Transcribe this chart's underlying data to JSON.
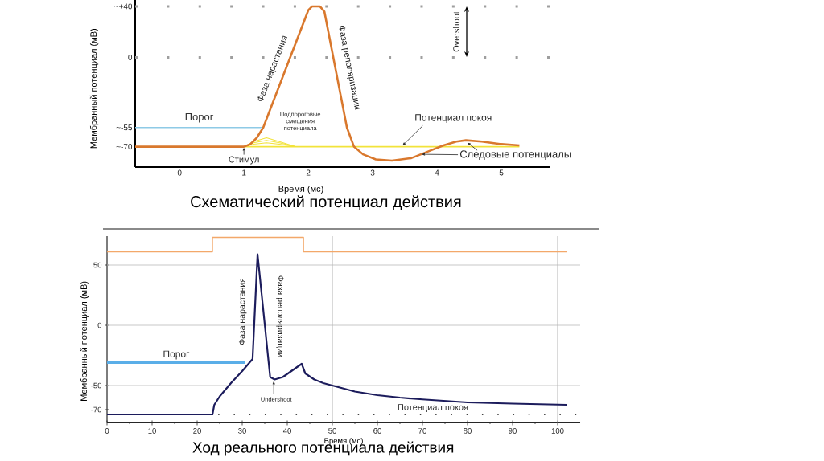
{
  "chart_data": [
    {
      "type": "line",
      "title": "Схематический потенциал действия",
      "xlabel": "Время (мс)",
      "ylabel": "Мембранный потенциал (мВ)",
      "xlim": [
        -0.69,
        5.75
      ],
      "xticks": [
        0,
        1,
        2,
        3,
        4,
        5
      ],
      "ylim": [
        -86,
        45
      ],
      "yticks": [
        {
          "value": -70,
          "label": "~-70"
        },
        {
          "value": -55,
          "label": "~-55"
        },
        0,
        {
          "value": 40,
          "label": "~+40"
        }
      ],
      "series": [
        {
          "name": "Порог",
          "color": "#8ecae6",
          "x": [
            -0.69,
            1.3
          ],
          "values": [
            -55,
            -55
          ]
        },
        {
          "color": "#f2e33a",
          "x": [
            1.0,
            5.28
          ],
          "values": [
            -70,
            -70
          ]
        },
        {
          "color": "#f2e33a",
          "x": [
            1.0,
            1.15,
            1.35,
            1.55,
            1.8
          ],
          "values": [
            -70,
            -66,
            -63,
            -66,
            -70
          ]
        },
        {
          "color": "#f2e33a",
          "x": [
            1.0,
            1.15,
            1.35,
            1.55,
            1.8
          ],
          "values": [
            -70,
            -67,
            -65,
            -67,
            -70
          ]
        },
        {
          "color": "#f2e33a",
          "x": [
            1.0,
            1.15,
            1.35,
            1.55,
            1.8
          ],
          "values": [
            -70,
            -68,
            -67,
            -68,
            -70
          ]
        },
        {
          "color": "#d9782d",
          "x": [
            -0.69,
            1.0,
            1.1,
            1.2,
            1.3,
            2.0,
            2.06,
            2.18,
            2.25,
            2.6,
            2.71,
            2.85,
            3.05,
            3.3,
            3.6,
            3.9,
            4.1,
            4.3,
            4.45,
            4.7,
            5.0,
            5.28
          ],
          "values": [
            -70,
            -70,
            -68,
            -63,
            -55,
            37,
            40,
            40,
            36,
            -55,
            -70,
            -76,
            -80,
            -81,
            -79,
            -73,
            -69,
            -66,
            -65,
            -66,
            -68,
            -69
          ]
        }
      ],
      "ref_lines": [
        {
          "axis": "y",
          "value": 40,
          "color": "#9e9e9e",
          "line_style": "dotted"
        },
        {
          "axis": "y",
          "value": 0,
          "color": "#9e9e9e",
          "line_style": "dotted"
        }
      ],
      "annotations": [
        {
          "text": "Фаза нарастания",
          "x": 1.65,
          "y": -9
        },
        {
          "text": "Фаза реполяризации",
          "x": 2.42,
          "y": -8
        },
        {
          "text": "Подпороговые смещения потенциала",
          "x": 1.35,
          "y": -63
        },
        {
          "text": "Стимул",
          "x": 1.0,
          "y": -70
        },
        {
          "text": "Потенциал покоя",
          "x": 3.44,
          "y": -70
        },
        {
          "text": "Следовые потенциалы",
          "x": 3.75,
          "y": -76
        },
        "Overshoot"
      ]
    },
    {
      "type": "line",
      "title": "Ход реального потенциала действия",
      "xlabel": "Время (мс)",
      "ylabel": "Мембранный потенциал (мВ)",
      "xlim": [
        0,
        105
      ],
      "xticks": [
        0,
        10,
        20,
        30,
        40,
        50,
        60,
        70,
        80,
        90,
        100
      ],
      "ylim": [
        -81,
        74
      ],
      "yticks": [
        -70,
        -50,
        0,
        50
      ],
      "series": [
        {
          "color": "#f3a86a",
          "x": [
            0,
            23.4,
            23.4,
            43.6,
            43.6,
            102
          ],
          "values": [
            61,
            61,
            73,
            73,
            61,
            61
          ]
        },
        {
          "name": "Порог",
          "color": "#5aaee8",
          "x": [
            0,
            30.7
          ],
          "values": [
            -31,
            -31
          ]
        },
        {
          "name": "Потенциал покоя",
          "color": "#333333",
          "line_style": "dotted",
          "x": [
            24.8,
            104
          ],
          "values": [
            -74,
            -74
          ]
        },
        {
          "color": "#1c1c5c",
          "x": [
            0,
            23.4,
            23.8,
            25,
            27.5,
            30,
            32.3,
            33.4,
            36.2,
            37.2,
            39,
            43.2,
            44,
            46,
            48,
            51,
            55,
            60,
            65,
            70,
            80,
            90,
            102
          ],
          "values": [
            -74,
            -74,
            -66,
            -59,
            -48,
            -38,
            -28,
            59,
            -43,
            -45,
            -43,
            -32,
            -40,
            -45,
            -48,
            -51,
            -55,
            -58,
            -60,
            -61.5,
            -64,
            -65,
            -66
          ]
        }
      ],
      "ref_lines": [
        {
          "axis": "y",
          "value": 50,
          "color": "#c8c8c8"
        },
        {
          "axis": "y",
          "value": 0,
          "color": "#c8c8c8"
        },
        {
          "axis": "y",
          "value": -50,
          "color": "#c8c8c8"
        },
        {
          "axis": "x",
          "value": 50,
          "color": "#b4b4b4"
        },
        {
          "axis": "x",
          "value": 100,
          "color": "#b4b4b4"
        }
      ],
      "annotations": [
        {
          "text": "Фаза нарастания",
          "x": 32.8,
          "y": 15
        },
        {
          "text": "Фаза реполяризации",
          "x": 34.8,
          "y": 10
        },
        {
          "text": "Undershoot",
          "x": 37,
          "y": -45
        }
      ]
    }
  ]
}
